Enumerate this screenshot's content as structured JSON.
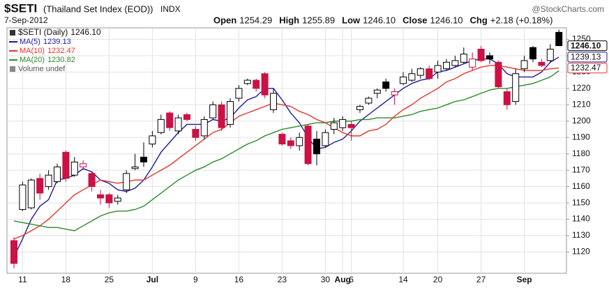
{
  "chart_data": {
    "type": "candlestick",
    "title": "$SETI",
    "subtitle": "(Thailand Set Index (EOD))",
    "exchange": "INDX",
    "date": "7-Sep-2012",
    "watermark": "@StockCharts.com",
    "quote": [
      {
        "label": "Open",
        "text": "1254.29"
      },
      {
        "label": "High",
        "text": "1255.89"
      },
      {
        "label": "Low",
        "text": "1246.10"
      },
      {
        "label": "Close",
        "text": "1246.10"
      },
      {
        "label": "Chg",
        "text": "+2.18 (+0.18%)"
      }
    ],
    "legend_name": "$SETI (Daily)",
    "close_label": "1246.10",
    "volume": "Volume undef",
    "categories": [
      null,
      "11",
      null,
      null,
      null,
      null,
      "18",
      null,
      null,
      null,
      null,
      "25",
      null,
      null,
      null,
      null,
      "Jul",
      null,
      null,
      null,
      null,
      "9",
      null,
      null,
      null,
      null,
      "16",
      null,
      null,
      null,
      null,
      "23",
      null,
      null,
      null,
      null,
      "30",
      null,
      "Aug",
      "6",
      null,
      null,
      null,
      null,
      null,
      "14",
      null,
      null,
      null,
      "20",
      null,
      null,
      null,
      null,
      "27",
      null,
      null,
      null,
      null,
      "Sep",
      null,
      null,
      null,
      null
    ],
    "open": [
      1127,
      1146,
      1147,
      1165,
      1160,
      1163,
      1181,
      1167,
      1172,
      1168,
      1155,
      1155,
      1151,
      1158,
      1171,
      1178,
      1186,
      1193,
      1205,
      1194,
      1204,
      1195,
      1191,
      1202,
      1210,
      1198,
      1214,
      1223,
      1225,
      1229,
      1207,
      1192,
      1188,
      1185,
      1197,
      1189,
      1185,
      1195,
      1196,
      1198,
      1207,
      1211,
      1217,
      1224,
      1216,
      1223,
      1225,
      1228,
      1232,
      1230,
      1232,
      1234,
      1236,
      1233,
      1244,
      1240,
      1236,
      1218,
      1212,
      1232,
      1245,
      1236,
      1237,
      1254.29
    ],
    "high": [
      1129,
      1163,
      1165,
      1168,
      1170,
      1174,
      1182,
      1178,
      1176,
      1169,
      1158,
      1156,
      1155,
      1170,
      1180,
      1187,
      1194,
      1204,
      1206,
      1204,
      1205,
      1197,
      1203,
      1212,
      1212,
      1214,
      1222,
      1226,
      1226,
      1230,
      1220,
      1193,
      1190,
      1193,
      1198,
      1194,
      1195,
      1202,
      1203,
      1200,
      1210,
      1215,
      1220,
      1226,
      1220,
      1230,
      1232,
      1233,
      1234,
      1237,
      1238,
      1240,
      1245,
      1242,
      1246,
      1242,
      1237,
      1220,
      1232,
      1240,
      1246,
      1238,
      1247,
      1255.89
    ],
    "low": [
      1110,
      1145,
      1146,
      1152,
      1158,
      1162,
      1163,
      1166,
      1170,
      1157,
      1149,
      1147,
      1149,
      1156,
      1170,
      1172,
      1184,
      1192,
      1194,
      1192,
      1200,
      1188,
      1189,
      1201,
      1194,
      1196,
      1212,
      1222,
      1218,
      1214,
      1205,
      1185,
      1183,
      1182,
      1173,
      1173,
      1184,
      1192,
      1194,
      1188,
      1205,
      1210,
      1214,
      1218,
      1210,
      1222,
      1224,
      1226,
      1225,
      1226,
      1231,
      1233,
      1235,
      1231,
      1236,
      1235,
      1220,
      1207,
      1210,
      1230,
      1236,
      1233,
      1236,
      1246.1
    ],
    "close": [
      1113,
      1161,
      1164,
      1156,
      1167,
      1172,
      1165,
      1175,
      1174,
      1160,
      1153,
      1150,
      1153,
      1168,
      1172,
      1175,
      1191,
      1201,
      1196,
      1202,
      1201,
      1190,
      1201,
      1210,
      1196,
      1212,
      1220,
      1225,
      1220,
      1216,
      1217,
      1186,
      1185,
      1190,
      1174,
      1180,
      1193,
      1199,
      1201,
      1196,
      1209,
      1214,
      1219,
      1220,
      1218,
      1227,
      1229,
      1232,
      1226,
      1234,
      1236,
      1237,
      1241,
      1238,
      1237,
      1238,
      1221,
      1210,
      1229,
      1237,
      1238,
      1234,
      1244,
      1246.1
    ],
    "series": [
      {
        "name": "MA(5)",
        "color": "#1c1c9c",
        "tag": true,
        "values": [
          1117,
          1128,
          1140,
          1148,
          1152,
          1164,
          1165,
          1167,
          1171,
          1169,
          1164,
          1162,
          1158,
          1157,
          1159,
          1164,
          1172,
          1181,
          1187,
          1193,
          1198,
          1198,
          1198,
          1201,
          1200,
          1202,
          1208,
          1213,
          1215,
          1220,
          1220,
          1213,
          1205,
          1199,
          1190,
          1183,
          1184,
          1187,
          1189,
          1194,
          1200,
          1204,
          1208,
          1212,
          1216,
          1220,
          1223,
          1225,
          1226,
          1230,
          1231,
          1233,
          1235,
          1237,
          1238,
          1238,
          1235,
          1229,
          1227,
          1227,
          1227,
          1230,
          1236,
          1239.13
        ]
      },
      {
        "name": "MA(10)",
        "color": "#e8342e",
        "tag": true,
        "values": [
          1128,
          1130,
          1133,
          1136,
          1140,
          1145,
          1150,
          1155,
          1158,
          1161,
          1164,
          1163,
          1162,
          1163,
          1164,
          1164,
          1167,
          1170,
          1173,
          1177,
          1181,
          1185,
          1189,
          1193,
          1195,
          1199,
          1203,
          1205,
          1207,
          1209,
          1211,
          1210,
          1209,
          1206,
          1204,
          1201,
          1199,
          1196,
          1193,
          1191,
          1191,
          1194,
          1195,
          1198,
          1203,
          1207,
          1210,
          1214,
          1217,
          1220,
          1224,
          1226,
          1229,
          1231,
          1233,
          1234,
          1234,
          1233,
          1232,
          1231,
          1231,
          1231,
          1232,
          1232.47
        ]
      },
      {
        "name": "MA(20)",
        "color": "#2b8a2b",
        "tag": false,
        "values": [
          1139,
          1138,
          1137,
          1136,
          1135,
          1135,
          1134,
          1133,
          1136,
          1139,
          1142,
          1144,
          1145,
          1145,
          1146,
          1148,
          1152,
          1156,
          1160,
          1164,
          1167,
          1170,
          1172,
          1175,
          1177,
          1180,
          1183,
          1186,
          1188,
          1191,
          1193,
          1195,
          1196,
          1197,
          1198,
          1199,
          1199,
          1200,
          1200,
          1200,
          1201,
          1201,
          1202,
          1202,
          1202,
          1203,
          1204,
          1206,
          1207,
          1208,
          1210,
          1212,
          1213,
          1215,
          1217,
          1219,
          1220,
          1220,
          1221,
          1222,
          1223,
          1225,
          1227,
          1230.82
        ]
      }
    ],
    "up_color": "#000000",
    "down_color": "#cc1144",
    "ylim": [
      1107,
      1257
    ],
    "yticks": [
      1120,
      1130,
      1140,
      1150,
      1160,
      1170,
      1180,
      1190,
      1200,
      1210,
      1220,
      1230,
      1240,
      1250
    ],
    "grid": true
  }
}
